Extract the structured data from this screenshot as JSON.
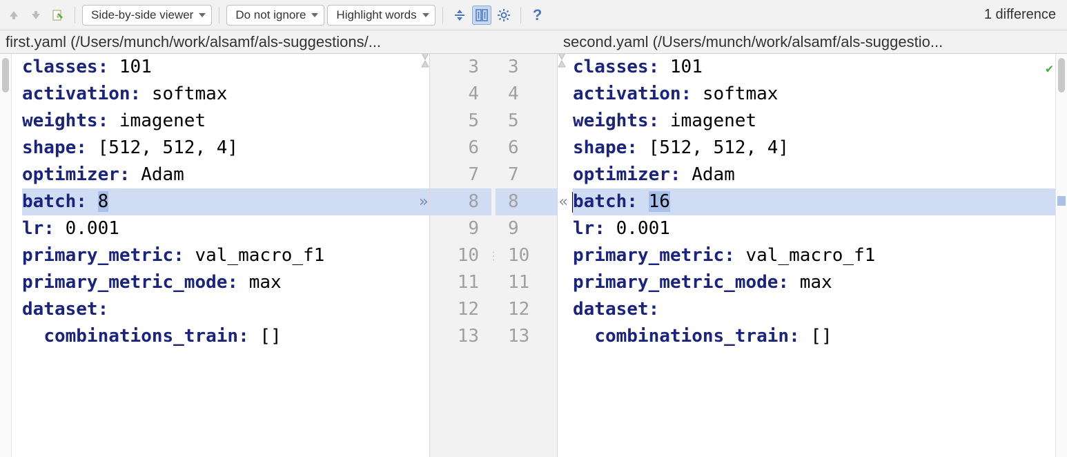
{
  "toolbar": {
    "viewer_label": "Side-by-side viewer",
    "ignore_label": "Do not ignore",
    "highlight_label": "Highlight words",
    "status": "1 difference"
  },
  "colors": {
    "changed_bg": "#cfdcf3",
    "value_highlight_bg": "#a9c0e8",
    "key_color": "#1a237e",
    "gutter_bg": "#f2f2f2",
    "gutter_text": "#a0a0a0"
  },
  "files": {
    "left_title": "first.yaml (/Users/munch/work/alsamf/als-suggestions/...",
    "right_title": "second.yaml (/Users/munch/work/alsamf/als-suggestio..."
  },
  "line_numbers": {
    "start": 3,
    "end": 13,
    "changed": 8
  },
  "left_lines": [
    {
      "key": "classes:",
      "val": " 101"
    },
    {
      "key": "activation:",
      "val": " softmax"
    },
    {
      "key": "weights:",
      "val": " imagenet"
    },
    {
      "key": "shape:",
      "val": " [512, 512, 4]"
    },
    {
      "key": "optimizer:",
      "val": " Adam"
    },
    {
      "key": "batch:",
      "val_pre": " ",
      "val_hl": "8",
      "changed": true
    },
    {
      "key": "lr:",
      "val": " 0.001"
    },
    {
      "key": "primary_metric:",
      "val": " val_macro_f1"
    },
    {
      "key": "primary_metric_mode:",
      "val": " max"
    },
    {
      "key": "dataset:",
      "val": ""
    },
    {
      "indent": "  ",
      "key": "combinations_train:",
      "val": " []"
    }
  ],
  "right_lines": [
    {
      "key": "classes:",
      "val": " 101"
    },
    {
      "key": "activation:",
      "val": " softmax"
    },
    {
      "key": "weights:",
      "val": " imagenet"
    },
    {
      "key": "shape:",
      "val": " [512, 512, 4]"
    },
    {
      "key": "optimizer:",
      "val": " Adam"
    },
    {
      "key": "batch:",
      "val_pre": " ",
      "val_hl": "16",
      "changed": true
    },
    {
      "key": "lr:",
      "val": " 0.001"
    },
    {
      "key": "primary_metric:",
      "val": " val_macro_f1"
    },
    {
      "key": "primary_metric_mode:",
      "val": " max"
    },
    {
      "key": "dataset:",
      "val": ""
    },
    {
      "indent": "  ",
      "key": "combinations_train:",
      "val": " []"
    }
  ]
}
